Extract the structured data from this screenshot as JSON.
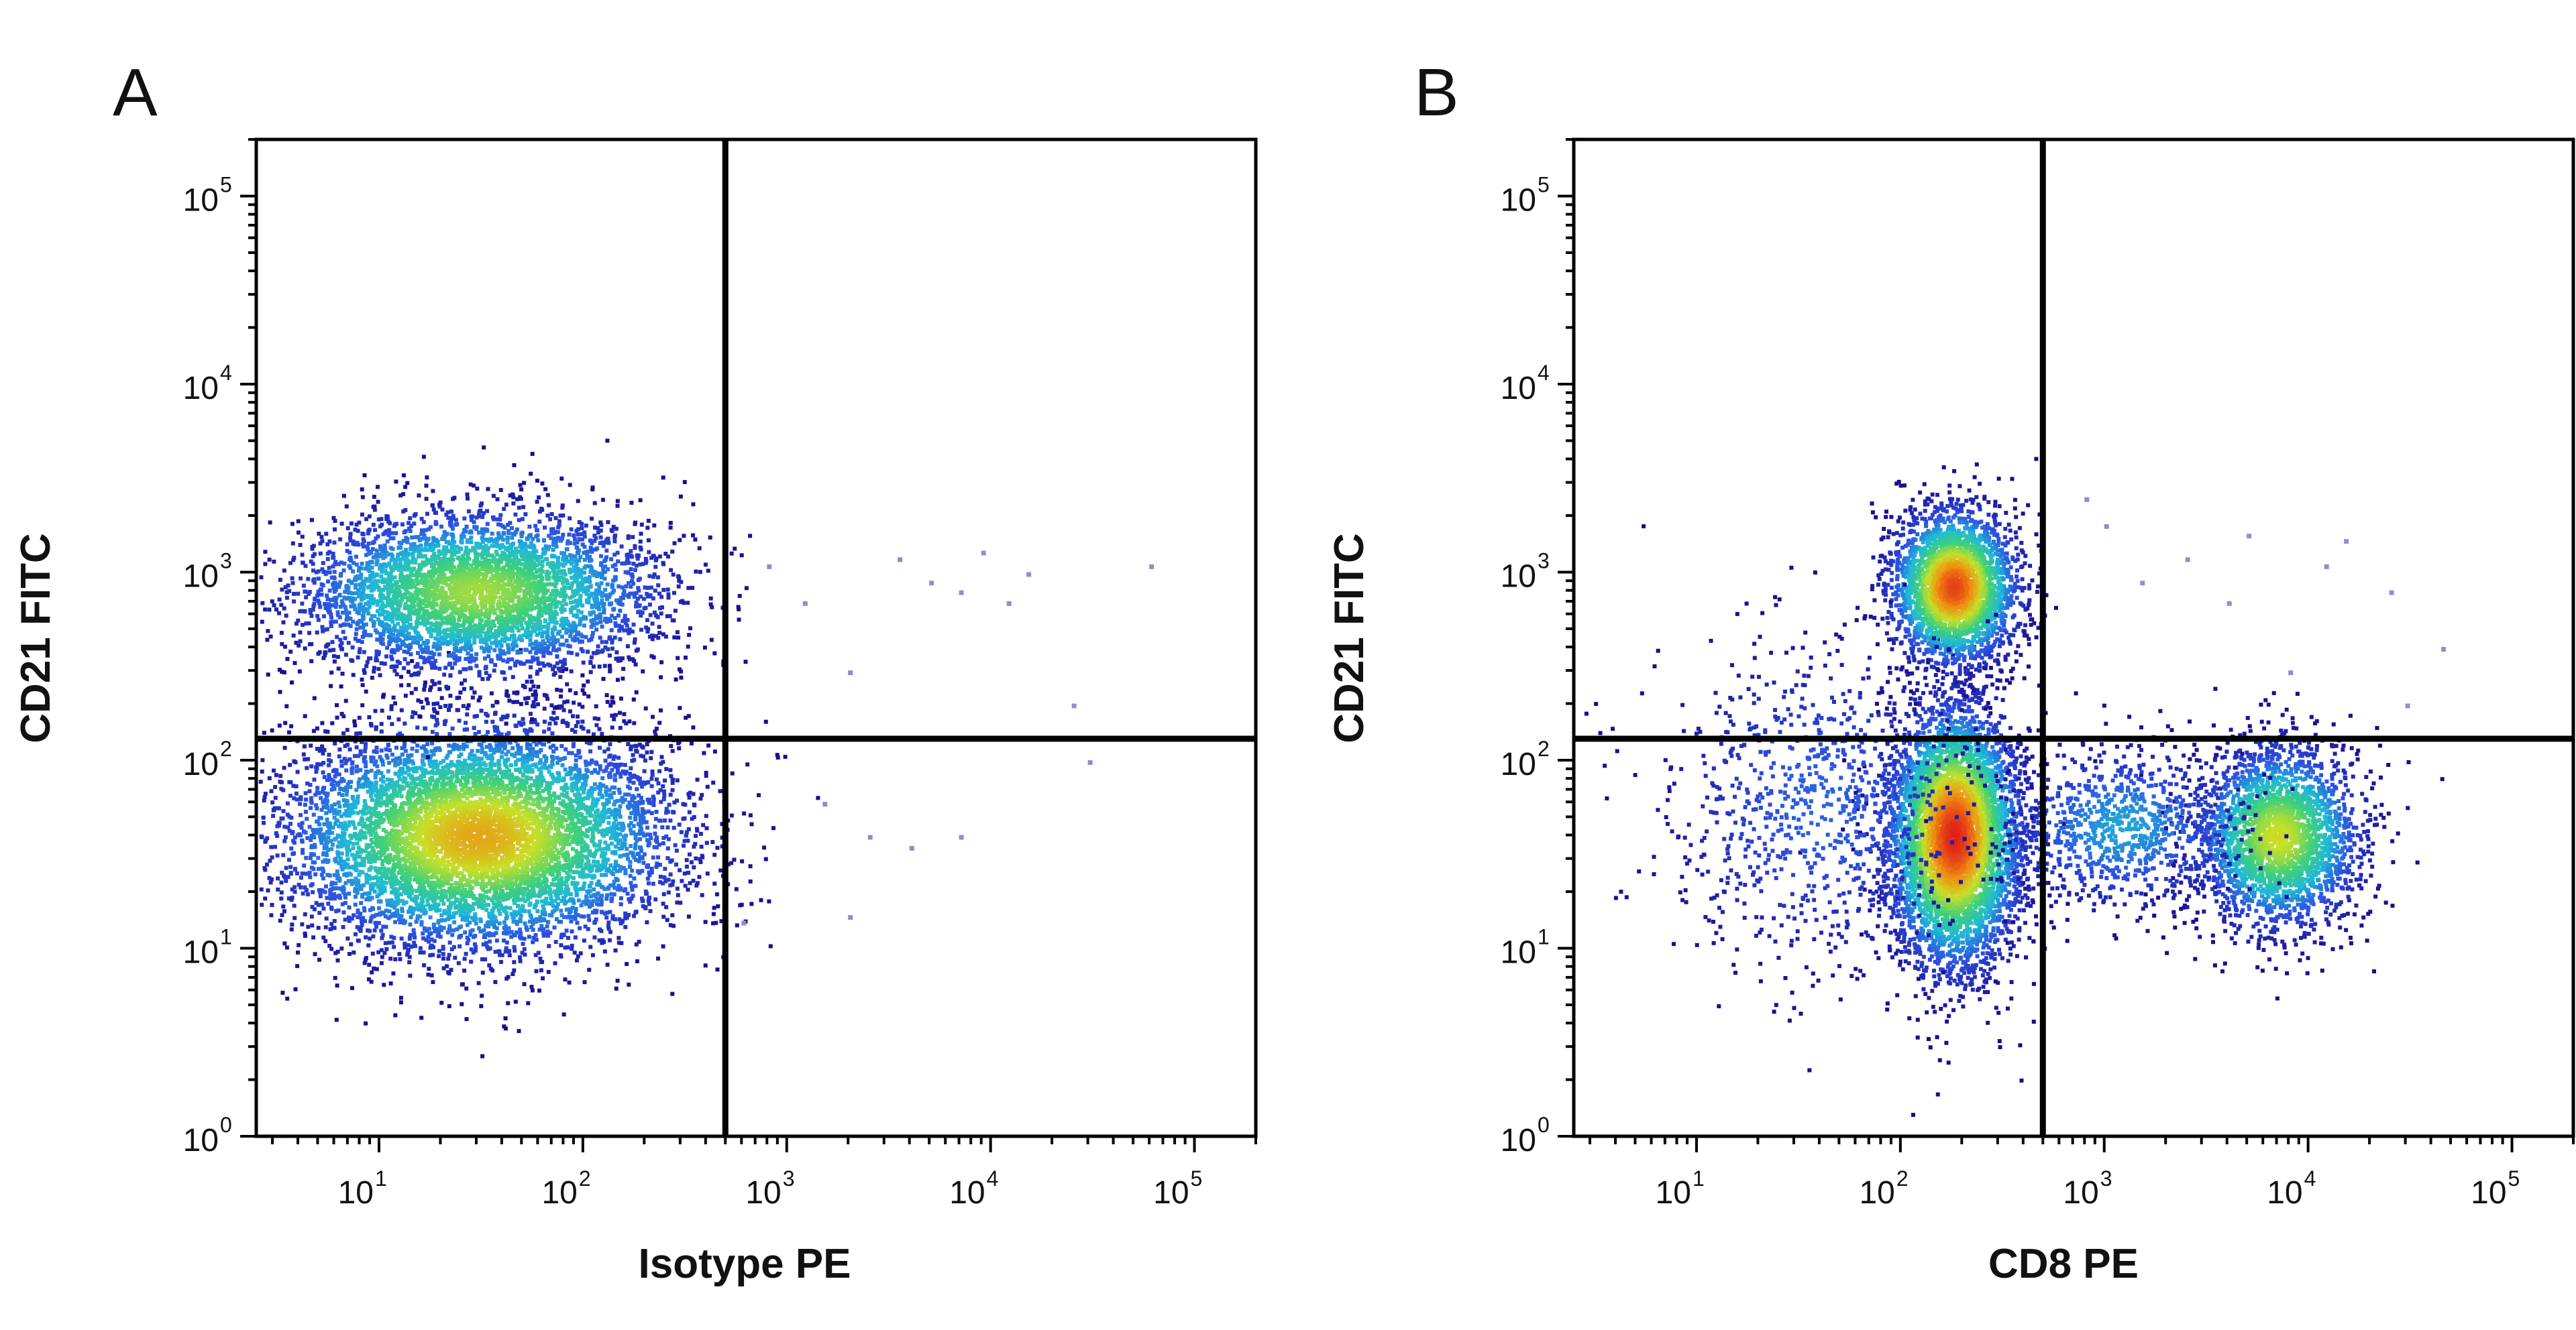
{
  "figure": {
    "panels": [
      "A",
      "B"
    ]
  },
  "chart_data": [
    {
      "type": "scatter",
      "subtype": "flow-cytometry-density-plot",
      "panel_letter": "A",
      "xlabel": "Isotype PE",
      "ylabel": "CD21 FITC",
      "xscale": "log",
      "yscale": "log",
      "xlim": [
        2.5,
        200000
      ],
      "ylim": [
        1,
        200000
      ],
      "x_ticks": [
        {
          "base": "10",
          "exp": "1",
          "value": 10
        },
        {
          "base": "10",
          "exp": "2",
          "value": 100
        },
        {
          "base": "10",
          "exp": "3",
          "value": 1000
        },
        {
          "base": "10",
          "exp": "4",
          "value": 10000
        },
        {
          "base": "10",
          "exp": "5",
          "value": 100000
        }
      ],
      "y_ticks": [
        {
          "base": "10",
          "exp": "0",
          "value": 1
        },
        {
          "base": "10",
          "exp": "1",
          "value": 10
        },
        {
          "base": "10",
          "exp": "2",
          "value": 100
        },
        {
          "base": "10",
          "exp": "3",
          "value": 1000
        },
        {
          "base": "10",
          "exp": "4",
          "value": 10000
        },
        {
          "base": "10",
          "exp": "5",
          "value": 100000
        }
      ],
      "quadrant_gate": {
        "x": 500,
        "y": 130
      },
      "color_scale": [
        "#1a0a8a",
        "#2d4fe0",
        "#1fb8d8",
        "#3fd07a",
        "#c8e028",
        "#f08c10",
        "#e0201a"
      ],
      "populations": [
        {
          "center": [
            30,
            40
          ],
          "spread": [
            0.48,
            0.3
          ],
          "count": 7000,
          "peak": 0.78
        },
        {
          "center": [
            30,
            800
          ],
          "spread": [
            0.45,
            0.22
          ],
          "count": 4200,
          "peak": 0.62
        }
      ],
      "sparse_events": [
        [
          800,
          1100
        ],
        [
          1200,
          700
        ],
        [
          2000,
          300
        ],
        [
          3500,
          1200
        ],
        [
          5000,
          900
        ],
        [
          7000,
          800
        ],
        [
          9000,
          1300
        ],
        [
          12000,
          700
        ],
        [
          15000,
          1000
        ],
        [
          25000,
          200
        ],
        [
          60000,
          1100
        ],
        [
          1500,
          60
        ],
        [
          2500,
          40
        ],
        [
          4000,
          35
        ],
        [
          7000,
          40
        ],
        [
          2000,
          15
        ],
        [
          600,
          14
        ],
        [
          30000,
          100
        ]
      ]
    },
    {
      "type": "scatter",
      "subtype": "flow-cytometry-density-plot",
      "panel_letter": "B",
      "xlabel": "CD8 PE",
      "ylabel": "CD21 FITC",
      "xscale": "log",
      "yscale": "log",
      "xlim": [
        2.5,
        200000
      ],
      "ylim": [
        1,
        200000
      ],
      "x_ticks": [
        {
          "base": "10",
          "exp": "1",
          "value": 10
        },
        {
          "base": "10",
          "exp": "2",
          "value": 100
        },
        {
          "base": "10",
          "exp": "3",
          "value": 1000
        },
        {
          "base": "10",
          "exp": "4",
          "value": 10000
        },
        {
          "base": "10",
          "exp": "5",
          "value": 100000
        }
      ],
      "y_ticks": [
        {
          "base": "10",
          "exp": "0",
          "value": 1
        },
        {
          "base": "10",
          "exp": "1",
          "value": 10
        },
        {
          "base": "10",
          "exp": "2",
          "value": 100
        },
        {
          "base": "10",
          "exp": "3",
          "value": 1000
        },
        {
          "base": "10",
          "exp": "4",
          "value": 10000
        },
        {
          "base": "10",
          "exp": "5",
          "value": 100000
        }
      ],
      "quadrant_gate": {
        "x": 500,
        "y": 130
      },
      "color_scale": [
        "#1a0a8a",
        "#2d4fe0",
        "#1fb8d8",
        "#3fd07a",
        "#c8e028",
        "#f08c10",
        "#e0201a"
      ],
      "populations": [
        {
          "center": [
            180,
            40
          ],
          "spread": [
            0.16,
            0.34
          ],
          "count": 5200,
          "peak": 1.0
        },
        {
          "center": [
            180,
            850
          ],
          "spread": [
            0.15,
            0.2
          ],
          "count": 3000,
          "peak": 0.95
        },
        {
          "center": [
            7000,
            40
          ],
          "spread": [
            0.2,
            0.24
          ],
          "count": 2600,
          "peak": 0.68
        },
        {
          "center": [
            1200,
            45
          ],
          "spread": [
            0.3,
            0.22
          ],
          "count": 900,
          "peak": 0.3
        },
        {
          "center": [
            40,
            60
          ],
          "spread": [
            0.4,
            0.45
          ],
          "count": 900,
          "peak": 0.2
        }
      ],
      "sparse_events": [
        [
          1500,
          900
        ],
        [
          2500,
          1200
        ],
        [
          4000,
          700
        ],
        [
          8000,
          300
        ],
        [
          15000,
          1500
        ],
        [
          25000,
          800
        ],
        [
          45000,
          400
        ],
        [
          30000,
          200
        ],
        [
          12000,
          1100
        ],
        [
          5000,
          1600
        ],
        [
          800,
          2500
        ],
        [
          1000,
          1800
        ]
      ]
    }
  ]
}
